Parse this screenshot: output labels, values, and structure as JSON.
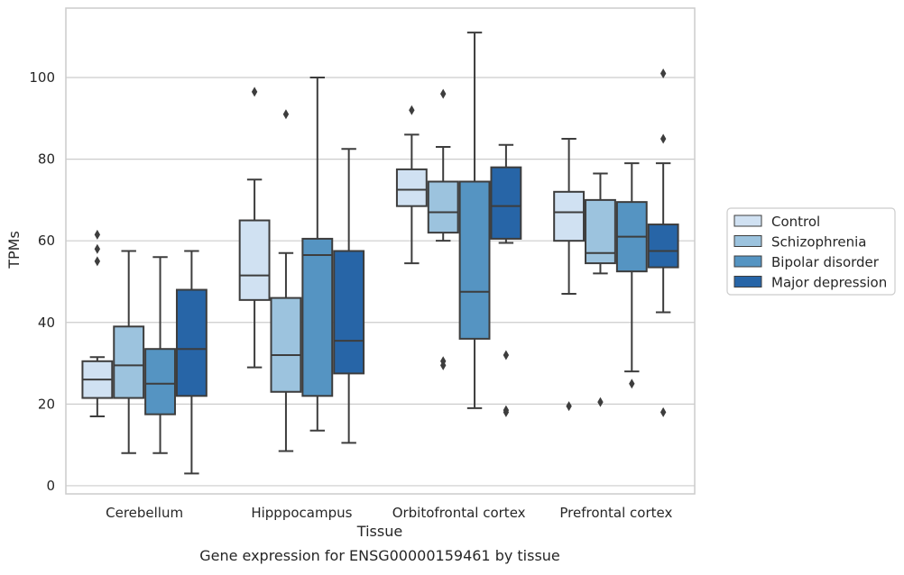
{
  "chart_data": {
    "type": "box",
    "title": "",
    "caption": "Gene expression for ENSG00000159461 by tissue",
    "xlabel": "Tissue",
    "ylabel": "TPMs",
    "ylim": [
      -2,
      117
    ],
    "yticks": [
      0,
      20,
      40,
      60,
      80,
      100
    ],
    "grid": "horizontal",
    "legend_position": "right",
    "categories": [
      "Cerebellum",
      "Hipppocampus",
      "Orbitofrontal cortex",
      "Prefrontal cortex"
    ],
    "series": [
      {
        "name": "Control",
        "color": "#d0e1f2",
        "boxes": [
          {
            "whisker_low": 17,
            "q1": 21.5,
            "median": 26,
            "q3": 30.5,
            "whisker_high": 31.5,
            "outliers": [
              55,
              58,
              61.5
            ]
          },
          {
            "whisker_low": 29,
            "q1": 45.5,
            "median": 51.5,
            "q3": 65,
            "whisker_high": 75,
            "outliers": [
              96.5
            ]
          },
          {
            "whisker_low": 54.5,
            "q1": 68.5,
            "median": 72.5,
            "q3": 77.5,
            "whisker_high": 86,
            "outliers": [
              92
            ]
          },
          {
            "whisker_low": 47,
            "q1": 60,
            "median": 67,
            "q3": 72,
            "whisker_high": 85,
            "outliers": [
              19.5
            ]
          }
        ]
      },
      {
        "name": "Schizophrenia",
        "color": "#9cc3de",
        "boxes": [
          {
            "whisker_low": 8,
            "q1": 21.5,
            "median": 29.5,
            "q3": 39,
            "whisker_high": 57.5,
            "outliers": []
          },
          {
            "whisker_low": 8.5,
            "q1": 23,
            "median": 32,
            "q3": 46,
            "whisker_high": 57,
            "outliers": [
              91
            ]
          },
          {
            "whisker_low": 60,
            "q1": 62,
            "median": 67,
            "q3": 74.5,
            "whisker_high": 83,
            "outliers": [
              29.5,
              30.5,
              96
            ]
          },
          {
            "whisker_low": 52,
            "q1": 54.5,
            "median": 57,
            "q3": 70,
            "whisker_high": 76.5,
            "outliers": [
              20.5
            ]
          }
        ]
      },
      {
        "name": "Bipolar disorder",
        "color": "#5594c2",
        "boxes": [
          {
            "whisker_low": 8,
            "q1": 17.5,
            "median": 25,
            "q3": 33.5,
            "whisker_high": 56,
            "outliers": []
          },
          {
            "whisker_low": 13.5,
            "q1": 22,
            "median": 56.5,
            "q3": 60.5,
            "whisker_high": 100,
            "outliers": []
          },
          {
            "whisker_low": 19,
            "q1": 36,
            "median": 47.5,
            "q3": 74.5,
            "whisker_high": 111,
            "outliers": []
          },
          {
            "whisker_low": 28,
            "q1": 52.5,
            "median": 61,
            "q3": 69.5,
            "whisker_high": 79,
            "outliers": [
              25
            ]
          }
        ]
      },
      {
        "name": "Major depression",
        "color": "#2765a7",
        "boxes": [
          {
            "whisker_low": 3,
            "q1": 22,
            "median": 33.5,
            "q3": 48,
            "whisker_high": 57.5,
            "outliers": []
          },
          {
            "whisker_low": 10.5,
            "q1": 27.5,
            "median": 35.5,
            "q3": 57.5,
            "whisker_high": 82.5,
            "outliers": []
          },
          {
            "whisker_low": 59.5,
            "q1": 60.5,
            "median": 68.5,
            "q3": 78,
            "whisker_high": 83.5,
            "outliers": [
              18,
              18.5,
              32
            ]
          },
          {
            "whisker_low": 42.5,
            "q1": 53.5,
            "median": 57.5,
            "q3": 64,
            "whisker_high": 79,
            "outliers": [
              18,
              85,
              101
            ]
          }
        ]
      }
    ]
  }
}
